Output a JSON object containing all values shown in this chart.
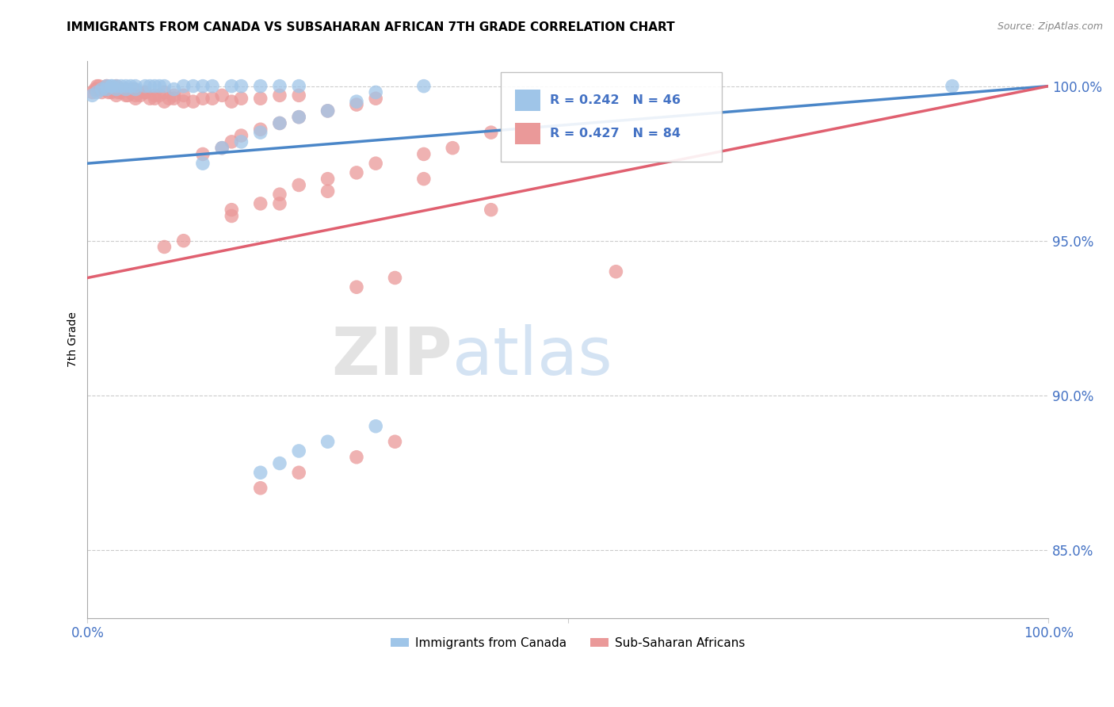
{
  "title": "IMMIGRANTS FROM CANADA VS SUBSAHARAN AFRICAN 7TH GRADE CORRELATION CHART",
  "source": "Source: ZipAtlas.com",
  "ylabel": "7th Grade",
  "xmin": 0.0,
  "xmax": 1.0,
  "ymin": 0.828,
  "ymax": 1.008,
  "yticks": [
    0.85,
    0.9,
    0.95,
    1.0
  ],
  "ytick_labels": [
    "85.0%",
    "90.0%",
    "95.0%",
    "100.0%"
  ],
  "canada_R": 0.242,
  "canada_N": 46,
  "africa_R": 0.427,
  "africa_N": 84,
  "canada_color": "#9fc5e8",
  "africa_color": "#ea9999",
  "canada_line_color": "#4a86c8",
  "africa_line_color": "#e06070",
  "legend_canada_label": "Immigrants from Canada",
  "legend_africa_label": "Sub-Saharan Africans",
  "canada_x": [
    0.005,
    0.01,
    0.015,
    0.02,
    0.02,
    0.025,
    0.025,
    0.03,
    0.03,
    0.035,
    0.04,
    0.04,
    0.045,
    0.05,
    0.05,
    0.06,
    0.065,
    0.07,
    0.075,
    0.08,
    0.09,
    0.1,
    0.11,
    0.12,
    0.13,
    0.15,
    0.16,
    0.18,
    0.2,
    0.22,
    0.12,
    0.14,
    0.16,
    0.18,
    0.2,
    0.22,
    0.25,
    0.28,
    0.3,
    0.35,
    0.18,
    0.2,
    0.22,
    0.25,
    0.3,
    0.9
  ],
  "canada_y": [
    0.997,
    0.998,
    0.999,
    0.999,
    1.0,
    1.0,
    1.0,
    1.0,
    0.999,
    1.0,
    0.999,
    1.0,
    1.0,
    0.999,
    1.0,
    1.0,
    1.0,
    1.0,
    1.0,
    1.0,
    0.999,
    1.0,
    1.0,
    1.0,
    1.0,
    1.0,
    1.0,
    1.0,
    1.0,
    1.0,
    0.975,
    0.98,
    0.982,
    0.985,
    0.988,
    0.99,
    0.992,
    0.995,
    0.998,
    1.0,
    0.875,
    0.878,
    0.882,
    0.885,
    0.89,
    1.0
  ],
  "africa_x": [
    0.005,
    0.008,
    0.01,
    0.01,
    0.012,
    0.015,
    0.015,
    0.018,
    0.02,
    0.02,
    0.022,
    0.025,
    0.025,
    0.028,
    0.03,
    0.03,
    0.032,
    0.035,
    0.035,
    0.04,
    0.04,
    0.042,
    0.045,
    0.045,
    0.048,
    0.05,
    0.05,
    0.055,
    0.06,
    0.06,
    0.065,
    0.07,
    0.07,
    0.075,
    0.08,
    0.08,
    0.085,
    0.09,
    0.09,
    0.1,
    0.1,
    0.11,
    0.12,
    0.13,
    0.14,
    0.15,
    0.16,
    0.18,
    0.2,
    0.22,
    0.12,
    0.14,
    0.15,
    0.16,
    0.18,
    0.2,
    0.22,
    0.25,
    0.28,
    0.3,
    0.15,
    0.18,
    0.2,
    0.22,
    0.25,
    0.28,
    0.3,
    0.35,
    0.38,
    0.42,
    0.08,
    0.1,
    0.15,
    0.2,
    0.25,
    0.35,
    0.42,
    0.55,
    0.28,
    0.32,
    0.18,
    0.22,
    0.28,
    0.32
  ],
  "africa_y": [
    0.998,
    0.999,
    0.999,
    1.0,
    1.0,
    0.998,
    0.999,
    0.999,
    1.0,
    1.0,
    0.998,
    0.998,
    0.999,
    0.999,
    1.0,
    0.997,
    0.998,
    0.998,
    0.999,
    0.999,
    0.997,
    0.997,
    0.998,
    0.998,
    0.999,
    0.996,
    0.997,
    0.997,
    0.998,
    0.998,
    0.996,
    0.996,
    0.997,
    0.997,
    0.998,
    0.995,
    0.996,
    0.996,
    0.997,
    0.997,
    0.995,
    0.995,
    0.996,
    0.996,
    0.997,
    0.995,
    0.996,
    0.996,
    0.997,
    0.997,
    0.978,
    0.98,
    0.982,
    0.984,
    0.986,
    0.988,
    0.99,
    0.992,
    0.994,
    0.996,
    0.96,
    0.962,
    0.965,
    0.968,
    0.97,
    0.972,
    0.975,
    0.978,
    0.98,
    0.985,
    0.948,
    0.95,
    0.958,
    0.962,
    0.966,
    0.97,
    0.96,
    0.94,
    0.935,
    0.938,
    0.87,
    0.875,
    0.88,
    0.885
  ]
}
